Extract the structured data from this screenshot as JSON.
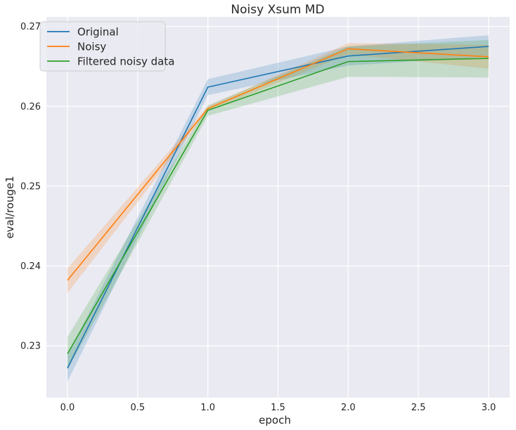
{
  "chart_data": {
    "type": "line",
    "title": "Noisy Xsum MD",
    "xlabel": "epoch",
    "ylabel": "eval/rouge1",
    "xlim": [
      -0.15,
      3.15
    ],
    "ylim": [
      0.2235,
      0.2712
    ],
    "x_ticks": [
      "0.0",
      "0.5",
      "1.0",
      "1.5",
      "2.0",
      "2.5",
      "3.0"
    ],
    "y_ticks": [
      "0.23",
      "0.24",
      "0.25",
      "0.26",
      "0.27"
    ],
    "grid": true,
    "legend_position": "top-left",
    "x": [
      0,
      1,
      2,
      3
    ],
    "series": [
      {
        "name": "Original",
        "color": "#1f77b4",
        "values": [
          0.2272,
          0.2624,
          0.2663,
          0.2675
        ],
        "lower": [
          0.2255,
          0.2614,
          0.2651,
          0.2662
        ],
        "upper": [
          0.2288,
          0.2634,
          0.2675,
          0.2689
        ]
      },
      {
        "name": "Noisy",
        "color": "#ff7f0e",
        "values": [
          0.2382,
          0.2597,
          0.2672,
          0.2662
        ],
        "lower": [
          0.2366,
          0.2594,
          0.2665,
          0.2647
        ],
        "upper": [
          0.2397,
          0.26,
          0.2679,
          0.2677
        ]
      },
      {
        "name": "Filtered noisy data",
        "color": "#2ca02c",
        "values": [
          0.229,
          0.2595,
          0.2656,
          0.266
        ],
        "lower": [
          0.227,
          0.2588,
          0.2637,
          0.2636
        ],
        "upper": [
          0.2311,
          0.2601,
          0.2675,
          0.2683
        ]
      }
    ]
  }
}
